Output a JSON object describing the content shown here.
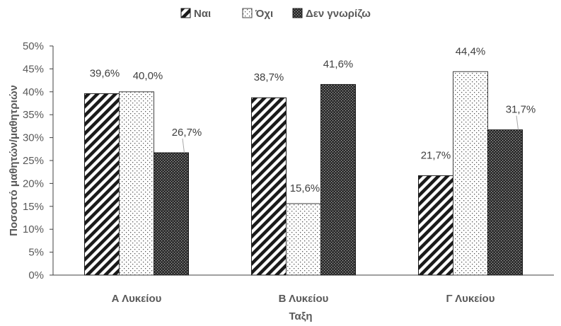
{
  "chart_data": {
    "type": "bar",
    "categories": [
      "Α Λυκείου",
      "Β Λυκείου",
      "Γ Λυκείου"
    ],
    "series": [
      {
        "name": "Ναι",
        "values": [
          39.6,
          38.7,
          21.7
        ],
        "labels": [
          "39,6%",
          "38,7%",
          "21,7%"
        ],
        "pattern": "diagonal-stripes"
      },
      {
        "name": "Όχι",
        "values": [
          40.0,
          15.6,
          44.4
        ],
        "labels": [
          "40,0%",
          "15,6%",
          "44,4%"
        ],
        "pattern": "sparse-dots"
      },
      {
        "name": "Δεν γνωρίζω",
        "values": [
          26.7,
          41.6,
          31.7
        ],
        "labels": [
          "26,7%",
          "41,6%",
          "31,7%"
        ],
        "pattern": "dense-checker"
      }
    ],
    "xlabel": "Ταξη",
    "ylabel": "Ποσοστό μαθητών/μαθητριών",
    "ylim": [
      0,
      50
    ],
    "yticks": [
      "0%",
      "5%",
      "10%",
      "15%",
      "20%",
      "25%",
      "30%",
      "35%",
      "40%",
      "45%",
      "50%"
    ],
    "legend_position": "top-center",
    "grid": false
  }
}
